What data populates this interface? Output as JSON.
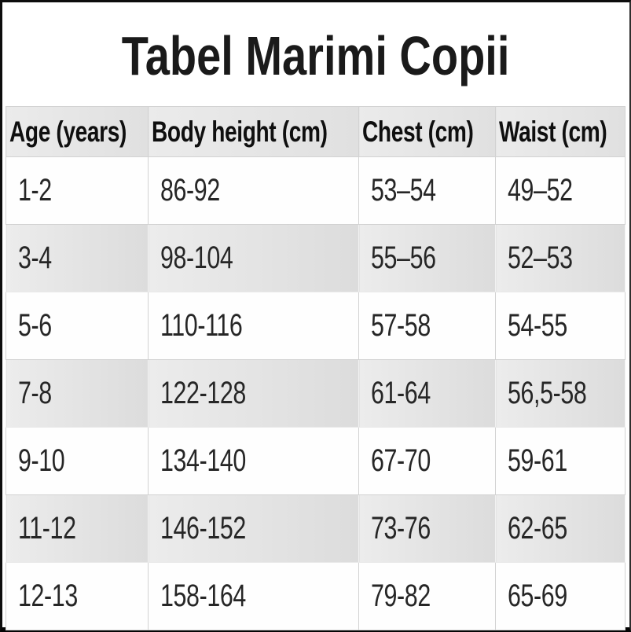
{
  "title": "Tabel Marimi Copii",
  "table": {
    "columns": [
      "Age (years)",
      "Body height (cm)",
      "Chest (cm)",
      "Waist (cm)"
    ],
    "rows": [
      [
        "1-2",
        "86-92",
        "53–54",
        "49–52"
      ],
      [
        "3-4",
        "98-104",
        "55–56",
        "52–53"
      ],
      [
        "5-6",
        "110-116",
        "57-58",
        "54-55"
      ],
      [
        "7-8",
        "122-128",
        "61-64",
        "56,5-58"
      ],
      [
        "9-10",
        "134-140",
        "67-70",
        "59-61"
      ],
      [
        "11-12",
        "146-152",
        "73-76",
        "62-65"
      ],
      [
        "12-13",
        "158-164",
        "79-82",
        "65-69"
      ]
    ]
  },
  "colors": {
    "frame_border": "#0d0d0d",
    "header_bg": "#e6e6e6",
    "stripe_bg": "#e2e2e2",
    "cell_border": "#d2d2d2",
    "header_text": "#0f0f0f",
    "cell_text": "#262626"
  }
}
